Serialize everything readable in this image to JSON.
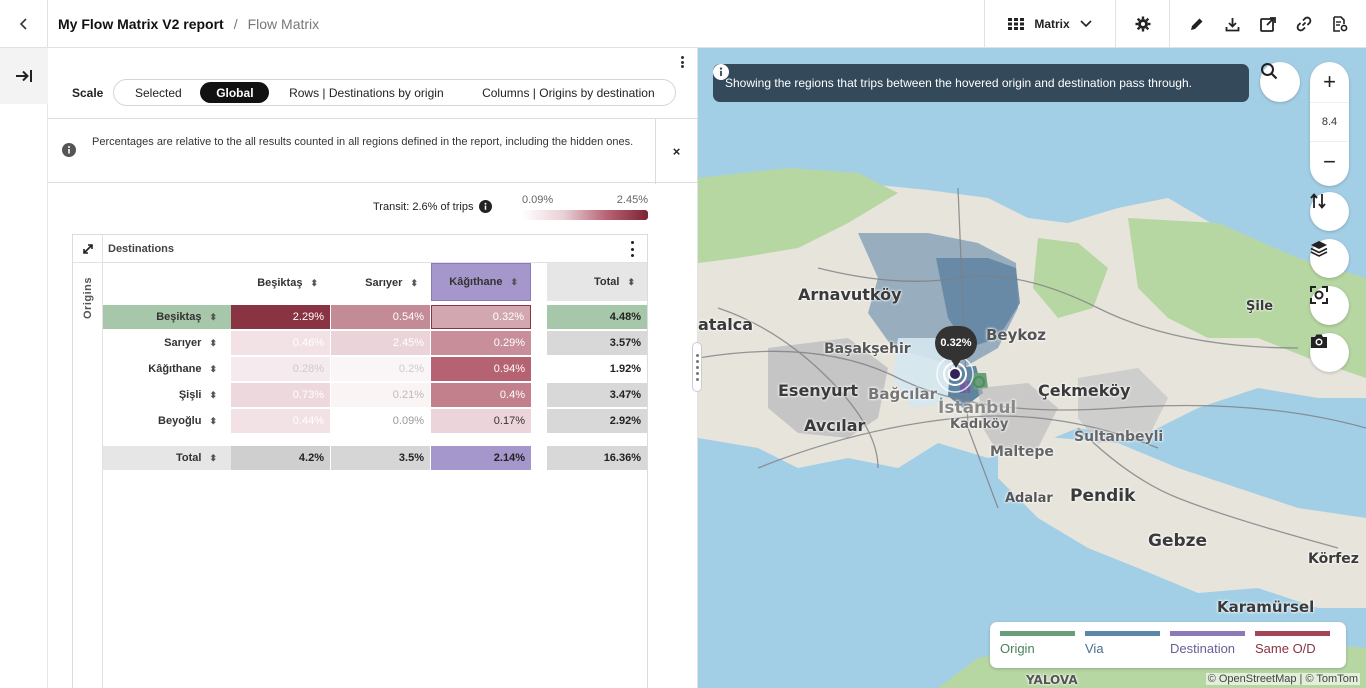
{
  "header": {
    "title": "My Flow Matrix V2 report",
    "separator": "/",
    "subtitle": "Flow Matrix",
    "view_selector": "Matrix"
  },
  "scale": {
    "label": "Scale",
    "options": [
      "Selected",
      "Global",
      "Rows | Destinations by origin",
      "Columns | Origins by destination"
    ],
    "active": "Global"
  },
  "notice": {
    "text": "Percentages are relative to the all results counted in all regions defined in the report, including the hidden ones.",
    "close": "×"
  },
  "transit": {
    "text": "Transit: 2.6% of trips",
    "min": "0.09%",
    "max": "2.45%"
  },
  "matrix": {
    "destinations_label": "Destinations",
    "origins_label": "Origins",
    "columns": [
      "Beşiktaş",
      "Sarıyer",
      "Kâğıthane"
    ],
    "total_label": "Total",
    "rows": [
      {
        "name": "Beşiktaş",
        "values": [
          "2.29%",
          "0.54%",
          "0.32%"
        ],
        "total": "4.48%"
      },
      {
        "name": "Sarıyer",
        "values": [
          "0.46%",
          "2.45%",
          "0.29%"
        ],
        "total": "3.57%"
      },
      {
        "name": "Kâğıthane",
        "values": [
          "0.28%",
          "0.2%",
          "0.94%"
        ],
        "total": "1.92%"
      },
      {
        "name": "Şişli",
        "values": [
          "0.73%",
          "0.21%",
          "0.4%"
        ],
        "total": "3.47%"
      },
      {
        "name": "Beyoğlu",
        "values": [
          "0.44%",
          "0.09%",
          "0.17%"
        ],
        "total": "2.92%"
      }
    ],
    "column_totals": [
      "4.2%",
      "3.5%",
      "2.14%"
    ],
    "grand_total": "16.36%"
  },
  "map": {
    "info": "Showing the regions that trips between the hovered origin and destination pass through.",
    "zoom_level": "8.4",
    "zoom_in": "+",
    "zoom_out": "−",
    "marker_value": "0.32%",
    "places": [
      "Arnavutköy",
      "atalca",
      "Başakşehir",
      "Beykoz",
      "Şile",
      "Esenyurt",
      "Bağcılar",
      "Çekmeköy",
      "Avcılar",
      "İstanbul",
      "Kadıköy",
      "Sultanbeyli",
      "Maltepe",
      "Adalar",
      "Pendik",
      "Gebze",
      "Körfez",
      "Karamürsel",
      "YALOVA"
    ],
    "legend": [
      {
        "label": "Origin",
        "color": "#6a9e7a"
      },
      {
        "label": "Via",
        "color": "#5b87a8"
      },
      {
        "label": "Destination",
        "color": "#8b79b8"
      },
      {
        "label": "Same O/D",
        "color": "#a04656"
      }
    ],
    "attribution": "© OpenStreetMap | © TomTom"
  }
}
